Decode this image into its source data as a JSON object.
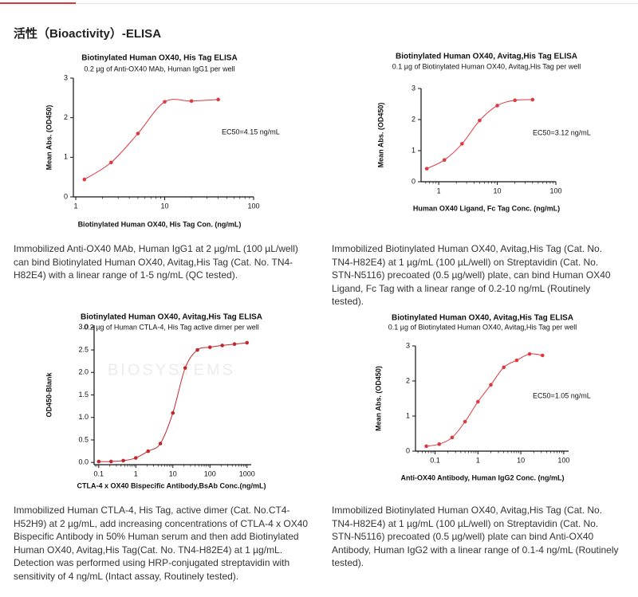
{
  "header": {
    "title": "活性（Bioactivity）-ELISA"
  },
  "captions": [
    "Immobilized Anti-OX40 MAb, Human IgG1 at 2 µg/mL (100 µL/well) can bind Biotinylated Human OX40, Avitag,His Tag (Cat. No. TN4-H82E4) with a linear range of 1-5 ng/mL (QC tested).",
    "Immobilized Biotinylated Human OX40, Avitag,His Tag (Cat. No. TN4-H82E4) at 1 µg/mL (100 µL/well) on Streptavidin (Cat. No. STN-N5116) precoated (0.5 µg/well) plate, can bind Human OX40 Ligand, Fc Tag with a linear range of 0.2-10 ng/mL (Routinely tested).",
    "Immobilized Human CTLA-4, His Tag, active dimer (Cat. No.CT4-H52H9) at 2 µg/mL, add increasing concentrations of CTLA-4 x OX40 Bispecific Antibody in 50% Human serum and then add Biotinylated Human OX40, Avitag,His Tag(Cat. No. TN4-H82E4) at 1 µg/mL. Detection was performed using HRP-conjugated streptavidin with sensitivity of 4 ng/mL (Intact assay, Routinely tested).",
    "Immobilized Biotinylated Human OX40, Avitag,His Tag (Cat. No. TN4-H82E4) at 1 µg/mL (100 µL/well) on Streptavidin (Cat. No. STN-N5116) precoated (0.5 µg/well) plate can bind Anti-OX40 Antibody, Human IgG2 with a linear range of 0.1-4 ng/mL (Routinely tested)."
  ],
  "chart_data": [
    {
      "type": "line",
      "title": "Biotinylated Human OX40, His Tag ELISA",
      "subtitle": "0.2 µg of Anti-OX40 MAb, Human IgG1 per well",
      "x_label": "Biotinylated Human OX40, His Tag Con. (ng/mL)",
      "y_label": "Mean Abs. (OD450)",
      "annotation": "EC50=4.15 ng/mL",
      "xscale": "log",
      "x": [
        1.25,
        2.5,
        5,
        10,
        20,
        40
      ],
      "values": [
        0.44,
        0.87,
        1.6,
        2.4,
        2.42,
        2.46
      ],
      "color": "#e0383f",
      "xlim": [
        0.94,
        100
      ],
      "xticks": [
        1,
        10,
        100
      ],
      "ylim": [
        0,
        3
      ],
      "yticks": [
        0,
        1,
        2,
        3
      ]
    },
    {
      "type": "line",
      "title": "Biotinylated Human OX40, Avitag,His Tag ELISA",
      "subtitle": "0.1 µg of Biotinylated Human OX40, Avitag,His Tag per well",
      "x_label": "Human OX40 Ligand, Fc Tag Conc. (ng/mL)",
      "y_label": "Mean Abs. (OD450)",
      "annotation": "EC50=3.12 ng/mL",
      "xscale": "log",
      "x": [
        0.625,
        1.25,
        2.5,
        5,
        10,
        20,
        40
      ],
      "values": [
        0.42,
        0.7,
        1.22,
        1.97,
        2.45,
        2.62,
        2.64
      ],
      "color": "#e0383f",
      "xlim": [
        0.5,
        100
      ],
      "xticks": [
        1,
        10,
        100
      ],
      "ylim": [
        0,
        3
      ],
      "yticks": [
        0,
        1,
        2,
        3
      ]
    },
    {
      "type": "line",
      "title": "Biotinylated Human OX40, Avitag,His Tag ELISA",
      "subtitle": "0.2 µg of Human CTLA-4, His Tag  active dimer per well",
      "x_label": "CTLA-4 x OX40 Bispecific Antibody,BsAb Conc.(ng/mL)",
      "y_label": "OD450-Blank",
      "watermark": "BIOSYSTEMS",
      "xscale": "log",
      "x": [
        0.1,
        0.215,
        0.46,
        1,
        2.15,
        4.6,
        10,
        21.5,
        46,
        100,
        215,
        460,
        1000
      ],
      "values": [
        0.02,
        0.02,
        0.04,
        0.1,
        0.25,
        0.42,
        1.1,
        2.1,
        2.5,
        2.56,
        2.6,
        2.63,
        2.66
      ],
      "color": "#c0282e",
      "xlim": [
        0.075,
        1300
      ],
      "xticks": [
        0.1,
        1,
        10,
        100,
        1000
      ],
      "ylim": [
        -0.05,
        3.05
      ],
      "yticks": [
        {
          "value": 0,
          "label": "0.0"
        },
        0.5,
        {
          "value": 1,
          "label": "1.0"
        },
        1.5,
        {
          "value": 2,
          "label": "2.0"
        },
        2.5,
        {
          "value": 3,
          "label": "3.0"
        }
      ]
    },
    {
      "type": "line",
      "title": "Biotinylated Human OX40, Avitag,His Tag ELISA",
      "subtitle": "0.1 µg of Biotinylated Human OX40, Avitag,His Tag per well",
      "x_label": "Anti-OX40 Antibody, Human IgG2 Conc. (ng/mL)",
      "y_label": "Mean Abs. (OD450)",
      "annotation": "EC50=1.05 ng/mL",
      "xscale": "log",
      "x": [
        0.0625,
        0.125,
        0.25,
        0.5,
        1,
        2,
        4,
        8,
        16,
        32
      ],
      "values": [
        0.14,
        0.2,
        0.39,
        0.84,
        1.41,
        1.89,
        2.39,
        2.59,
        2.77,
        2.73
      ],
      "color": "#e0383f",
      "xlim": [
        0.035,
        130
      ],
      "xticks": [
        0.1,
        1,
        10,
        100
      ],
      "ylim": [
        0,
        3
      ],
      "yticks": [
        0,
        1,
        2,
        3
      ]
    }
  ]
}
